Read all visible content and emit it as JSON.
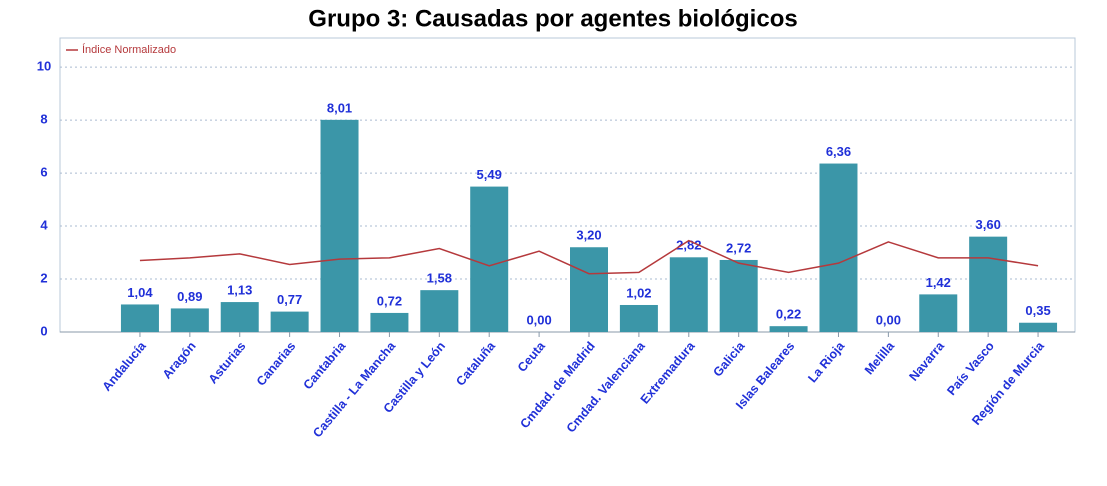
{
  "chart_data": {
    "type": "bar",
    "title": "Grupo 3: Causadas por agentes biológicos",
    "categories": [
      "Andalucía",
      "Aragón",
      "Asturias",
      "Canarias",
      "Cantabria",
      "Castilla - La Mancha",
      "Castilla y León",
      "Cataluña",
      "Ceuta",
      "Cmdad. de Madrid",
      "Cmdad. Valenciana",
      "Extremadura",
      "Galicia",
      "Islas Baleares",
      "La Rioja",
      "Melilla",
      "Navarra",
      "País Vasco",
      "Región de Murcia"
    ],
    "series": [
      {
        "type": "bar",
        "color": "#3b96a8",
        "values": [
          1.04,
          0.89,
          1.13,
          0.77,
          8.01,
          0.72,
          1.58,
          5.49,
          0,
          3.2,
          1.02,
          2.82,
          2.72,
          0.22,
          6.36,
          0,
          1.42,
          3.6,
          0.35
        ],
        "value_labels": [
          "1,04",
          "0,89",
          "1,13",
          "0,77",
          "8,01",
          "0,72",
          "1,58",
          "5,49",
          "0,00",
          "3,20",
          "1,02",
          "2,82",
          "2,72",
          "0,22",
          "6,36",
          "0,00",
          "1,42",
          "3,60",
          "0,35"
        ]
      },
      {
        "type": "line",
        "name": "Índice Normalizado",
        "color": "#b5393c",
        "values": [
          2.7,
          2.8,
          2.95,
          2.55,
          2.75,
          2.8,
          3.15,
          2.5,
          3.05,
          2.2,
          2.25,
          3.45,
          2.6,
          2.25,
          2.6,
          3.4,
          2.8,
          2.8,
          2.5
        ]
      }
    ],
    "ylim": [
      0,
      11.1
    ],
    "yticks": [
      0,
      2,
      4,
      6,
      8,
      10
    ],
    "grid": true,
    "legend": "upper left"
  }
}
